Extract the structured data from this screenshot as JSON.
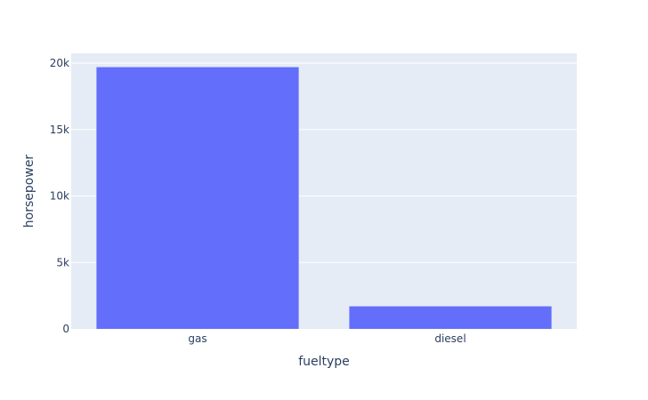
{
  "chart_data": {
    "type": "bar",
    "categories": [
      "gas",
      "diesel"
    ],
    "values": [
      19700,
      1700
    ],
    "title": "",
    "xlabel": "fueltype",
    "ylabel": "horsepower",
    "ylim": [
      0,
      20740
    ],
    "yticks": [
      0,
      5000,
      10000,
      15000,
      20000
    ],
    "ytick_labels": [
      "0",
      "5k",
      "10k",
      "15k",
      "20k"
    ],
    "grid": true,
    "bar_color": "#636efa",
    "plot_bg": "#e5ecf6",
    "grid_color": "#ffffff",
    "text_color": "#2a3f5f"
  }
}
